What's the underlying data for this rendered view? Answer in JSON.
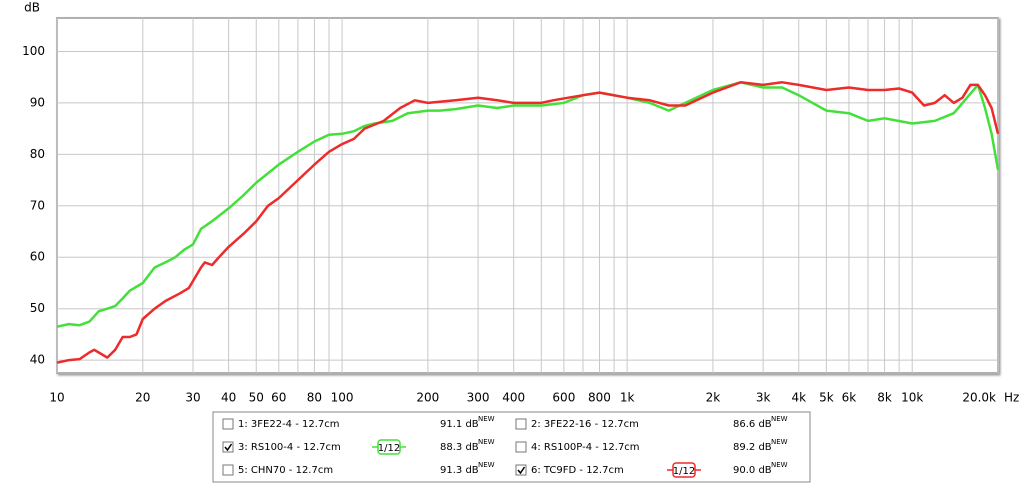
{
  "chart_data": {
    "type": "line",
    "y_label": "dB",
    "x_unit": "Hz",
    "x_scale": "log",
    "grid": true,
    "xlim": [
      10,
      20000
    ],
    "ylim": [
      37.5,
      106.5
    ],
    "yticks": [
      40,
      50,
      60,
      70,
      80,
      90,
      100
    ],
    "xticks": [
      10,
      20,
      30,
      40,
      50,
      60,
      80,
      100,
      200,
      300,
      400,
      600,
      800,
      {
        "value": 1000,
        "label": "1k"
      },
      {
        "value": 2000,
        "label": "2k"
      },
      {
        "value": 3000,
        "label": "3k"
      },
      {
        "value": 4000,
        "label": "4k"
      },
      {
        "value": 5000,
        "label": "5k"
      },
      {
        "value": 6000,
        "label": "6k"
      },
      {
        "value": 8000,
        "label": "8k"
      },
      {
        "value": 10000,
        "label": "10k"
      },
      {
        "value": 20000,
        "label": "20.0k"
      }
    ],
    "minor_xticks": [
      70,
      90,
      500,
      700,
      900,
      7000,
      9000
    ],
    "series": [
      {
        "name": "1: 3FE22-4 - 12.7cm",
        "color": "#22aacc",
        "checked": false,
        "level": "91.1 dB",
        "badge": "NEW",
        "x": [],
        "values": []
      },
      {
        "name": "2: 3FE22-16 - 12.7cm",
        "color": "#226666",
        "checked": false,
        "level": "86.6 dB",
        "badge": "NEW",
        "x": [],
        "values": []
      },
      {
        "name": "3: RS100-4 - 12.7cm",
        "color": "#44e03a",
        "checked": true,
        "level": "88.3 dB",
        "badge": "NEW",
        "smoothing": "1/12",
        "x": [
          10,
          11,
          12,
          13,
          14,
          15,
          16,
          17,
          18,
          20,
          22,
          24,
          26,
          28,
          30,
          32,
          35,
          40,
          45,
          50,
          60,
          70,
          80,
          90,
          100,
          110,
          120,
          130,
          150,
          170,
          200,
          220,
          250,
          300,
          350,
          400,
          500,
          600,
          700,
          800,
          1000,
          1200,
          1400,
          1600,
          2000,
          2500,
          3000,
          3500,
          4000,
          5000,
          6000,
          7000,
          8000,
          10000,
          12000,
          14000,
          17000,
          18000,
          19000,
          20000
        ],
        "values": [
          46.5,
          47,
          46.8,
          47.5,
          49.5,
          50,
          50.5,
          52,
          53.5,
          55,
          58,
          59,
          60,
          61.5,
          62.5,
          65.5,
          67,
          69.5,
          72,
          74.5,
          78,
          80.5,
          82.5,
          83.8,
          84,
          84.5,
          85.5,
          86,
          86.5,
          88,
          88.5,
          88.5,
          88.8,
          89.5,
          89,
          89.5,
          89.5,
          90,
          91.5,
          92,
          91,
          90,
          88.5,
          90,
          92.5,
          94,
          93,
          93,
          91.5,
          88.5,
          88,
          86.5,
          87,
          86,
          86.5,
          88,
          93.5,
          89,
          84,
          77
        ]
      },
      {
        "name": "4: RS100P-4 - 12.7cm",
        "color": "#3344aa",
        "checked": false,
        "level": "89.2 dB",
        "badge": "NEW",
        "x": [],
        "values": []
      },
      {
        "name": "5: CHN70 - 12.7cm",
        "color": "#cc22cc",
        "checked": false,
        "level": "91.3 dB",
        "badge": "NEW",
        "x": [],
        "values": []
      },
      {
        "name": "6: TC9FD - 12.7cm",
        "color": "#ee2a2a",
        "checked": true,
        "level": "90.0 dB",
        "badge": "NEW",
        "smoothing": "1/12",
        "x": [
          10,
          11,
          12,
          13,
          13.5,
          14.5,
          15,
          16,
          17,
          18,
          19,
          20,
          22,
          24,
          27,
          29,
          32,
          33,
          35,
          37,
          40,
          45,
          50,
          55,
          60,
          70,
          80,
          90,
          100,
          110,
          120,
          140,
          160,
          180,
          200,
          250,
          300,
          350,
          400,
          500,
          550,
          700,
          800,
          1000,
          1200,
          1400,
          1600,
          2000,
          2500,
          3000,
          3500,
          4000,
          5000,
          6000,
          7000,
          8000,
          9000,
          10000,
          11000,
          12000,
          13000,
          14000,
          15000,
          16000,
          17000,
          18000,
          19000,
          20000
        ],
        "values": [
          39.5,
          40,
          40.2,
          41.5,
          42,
          41,
          40.5,
          42,
          44.5,
          44.5,
          45,
          48,
          50,
          51.5,
          53,
          54,
          58,
          59,
          58.5,
          60,
          62,
          64.5,
          67,
          70,
          71.5,
          75,
          78,
          80.5,
          82,
          83,
          85,
          86.5,
          89,
          90.5,
          90,
          90.5,
          91,
          90.5,
          90,
          90,
          90.5,
          91.5,
          92,
          91,
          90.5,
          89.5,
          89.5,
          92,
          94,
          93.5,
          94,
          93.5,
          92.5,
          93,
          92.5,
          92.5,
          92.8,
          92,
          89.5,
          90,
          91.5,
          90,
          91,
          93.5,
          93.5,
          91.5,
          89,
          84
        ]
      }
    ]
  }
}
